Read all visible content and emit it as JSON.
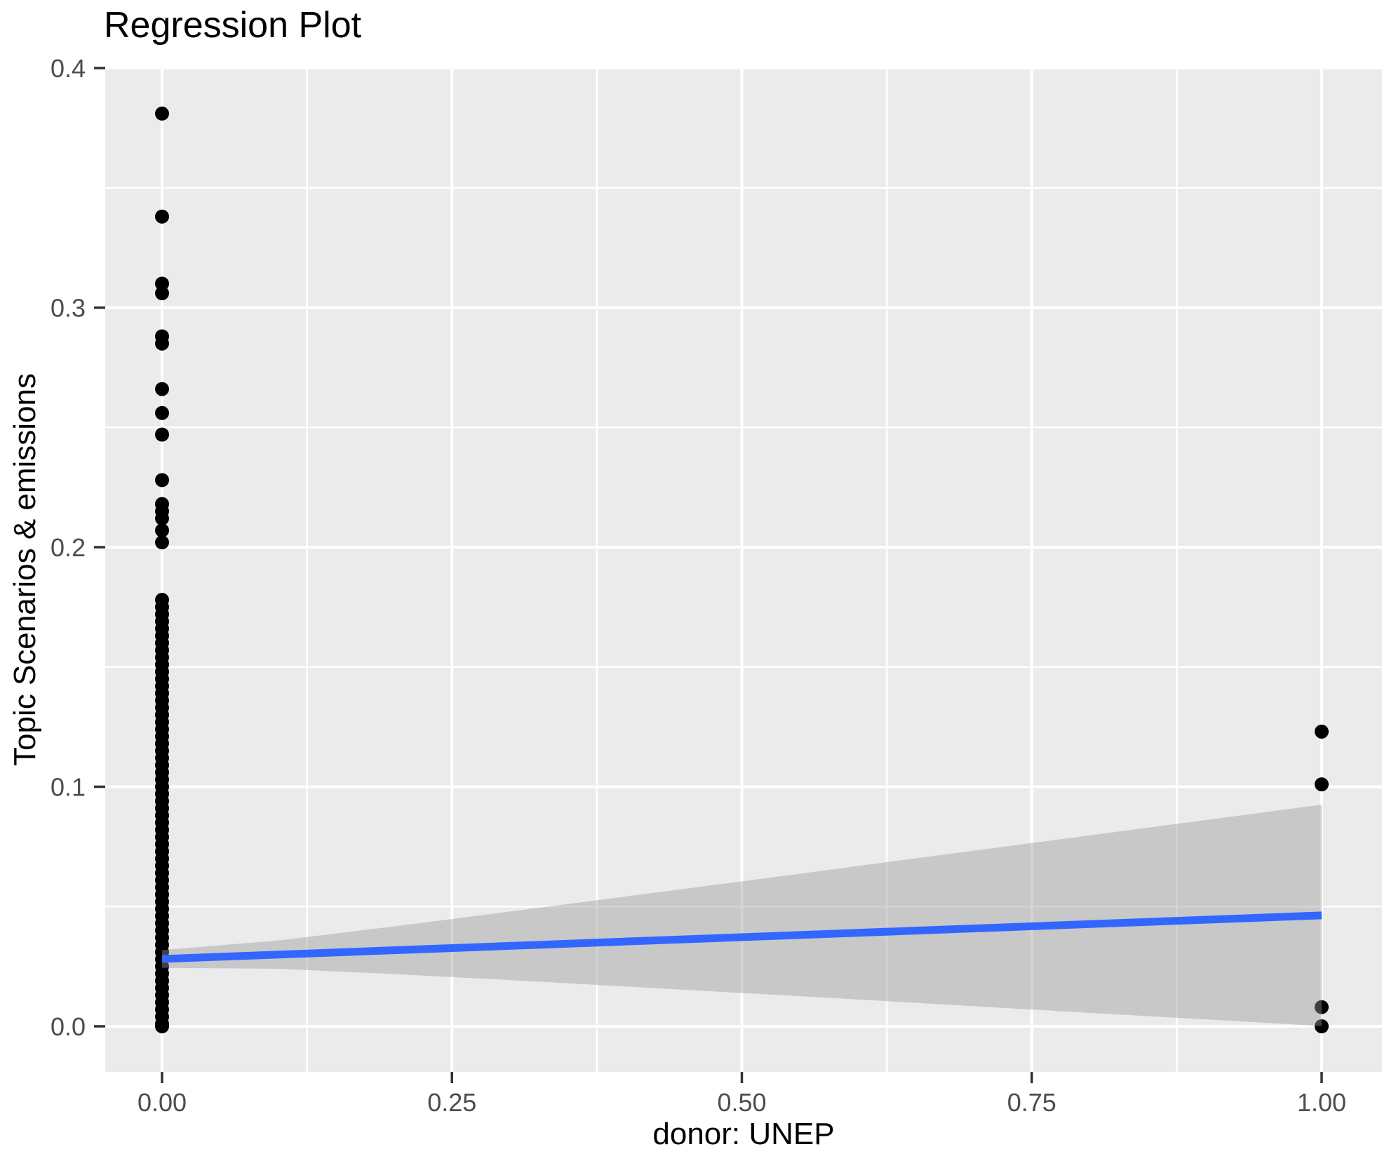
{
  "title": "Regression Plot",
  "chart_data": {
    "type": "scatter",
    "title": "Regression Plot",
    "xlabel": "donor: UNEP",
    "ylabel": "Topic Scenarios & emissions",
    "grid": true,
    "legend_position": "none",
    "xlim": [
      -0.05,
      1.05
    ],
    "ylim": [
      -0.019,
      0.4
    ],
    "x_axis": {
      "ticks": [
        {
          "value": 0.0,
          "label": "0.00"
        },
        {
          "value": 0.25,
          "label": "0.25"
        },
        {
          "value": 0.5,
          "label": "0.50"
        },
        {
          "value": 0.75,
          "label": "0.75"
        },
        {
          "value": 1.0,
          "label": "1.00"
        }
      ],
      "minor_ticks": [
        0.125,
        0.375,
        0.625,
        0.875
      ]
    },
    "y_axis": {
      "ticks": [
        {
          "value": 0.0,
          "label": "0.0"
        },
        {
          "value": 0.1,
          "label": "0.1"
        },
        {
          "value": 0.2,
          "label": "0.2"
        },
        {
          "value": 0.3,
          "label": "0.3"
        },
        {
          "value": 0.4,
          "label": "0.4"
        }
      ],
      "minor_ticks": [
        0.05,
        0.15,
        0.25,
        0.35
      ]
    },
    "points": [
      [
        0,
        0.381
      ],
      [
        0,
        0.338
      ],
      [
        0,
        0.31
      ],
      [
        0,
        0.306
      ],
      [
        0,
        0.288
      ],
      [
        0,
        0.285
      ],
      [
        0,
        0.266
      ],
      [
        0,
        0.256
      ],
      [
        0,
        0.247
      ],
      [
        0,
        0.228
      ],
      [
        0,
        0.218
      ],
      [
        0,
        0.215
      ],
      [
        0,
        0.212
      ],
      [
        0,
        0.207
      ],
      [
        0,
        0.202
      ],
      [
        0,
        0.178
      ],
      [
        0,
        0.175
      ],
      [
        0,
        0.172
      ],
      [
        0,
        0.169
      ],
      [
        0,
        0.166
      ],
      [
        0,
        0.163
      ],
      [
        0,
        0.16
      ],
      [
        0,
        0.157
      ],
      [
        0,
        0.154
      ],
      [
        0,
        0.151
      ],
      [
        0,
        0.148
      ],
      [
        0,
        0.145
      ],
      [
        0,
        0.142
      ],
      [
        0,
        0.139
      ],
      [
        0,
        0.136
      ],
      [
        0,
        0.133
      ],
      [
        0,
        0.13
      ],
      [
        0,
        0.127
      ],
      [
        0,
        0.124
      ],
      [
        0,
        0.121
      ],
      [
        0,
        0.118
      ],
      [
        0,
        0.115
      ],
      [
        0,
        0.112
      ],
      [
        0,
        0.109
      ],
      [
        0,
        0.106
      ],
      [
        0,
        0.103
      ],
      [
        0,
        0.1
      ],
      [
        0,
        0.097
      ],
      [
        0,
        0.094
      ],
      [
        0,
        0.091
      ],
      [
        0,
        0.088
      ],
      [
        0,
        0.085
      ],
      [
        0,
        0.082
      ],
      [
        0,
        0.079
      ],
      [
        0,
        0.076
      ],
      [
        0,
        0.073
      ],
      [
        0,
        0.07
      ],
      [
        0,
        0.067
      ],
      [
        0,
        0.064
      ],
      [
        0,
        0.061
      ],
      [
        0,
        0.058
      ],
      [
        0,
        0.055
      ],
      [
        0,
        0.052
      ],
      [
        0,
        0.049
      ],
      [
        0,
        0.046
      ],
      [
        0,
        0.043
      ],
      [
        0,
        0.04
      ],
      [
        0,
        0.037
      ],
      [
        0,
        0.034
      ],
      [
        0,
        0.031
      ],
      [
        0,
        0.028
      ],
      [
        0,
        0.025
      ],
      [
        0,
        0.022
      ],
      [
        0,
        0.019
      ],
      [
        0,
        0.016
      ],
      [
        0,
        0.013
      ],
      [
        0,
        0.01
      ],
      [
        0,
        0.007
      ],
      [
        0,
        0.004
      ],
      [
        0,
        0.001
      ],
      [
        0,
        0.0
      ],
      [
        1,
        0.123
      ],
      [
        1,
        0.101
      ],
      [
        1,
        0.008
      ],
      [
        1,
        0.0
      ]
    ],
    "regression_line": {
      "x": [
        0,
        1
      ],
      "y": [
        0.0281,
        0.0463
      ],
      "color": "#3366FF"
    },
    "confidence_band": {
      "x": [
        0.0,
        0.1,
        0.2,
        0.3,
        0.4,
        0.5,
        0.6,
        0.7,
        0.8,
        0.9,
        1.0
      ],
      "upper": [
        0.0318,
        0.0358,
        0.0417,
        0.0479,
        0.0542,
        0.0605,
        0.0669,
        0.0733,
        0.0797,
        0.0861,
        0.0925
      ],
      "lower": [
        0.0244,
        0.024,
        0.0218,
        0.0193,
        0.0166,
        0.0139,
        0.0112,
        0.0084,
        0.0056,
        0.0029,
        0.0001
      ]
    },
    "colors": {
      "panel_bg": "#EBEBEB",
      "grid": "#FFFFFF",
      "point": "#000000",
      "line": "#3366FF",
      "band": "#999999",
      "band_opacity": 0.42,
      "tick_mark": "#333333",
      "tick_label": "#4D4D4D",
      "axis_title": "#000000",
      "plot_bg": "#FFFFFF"
    }
  }
}
